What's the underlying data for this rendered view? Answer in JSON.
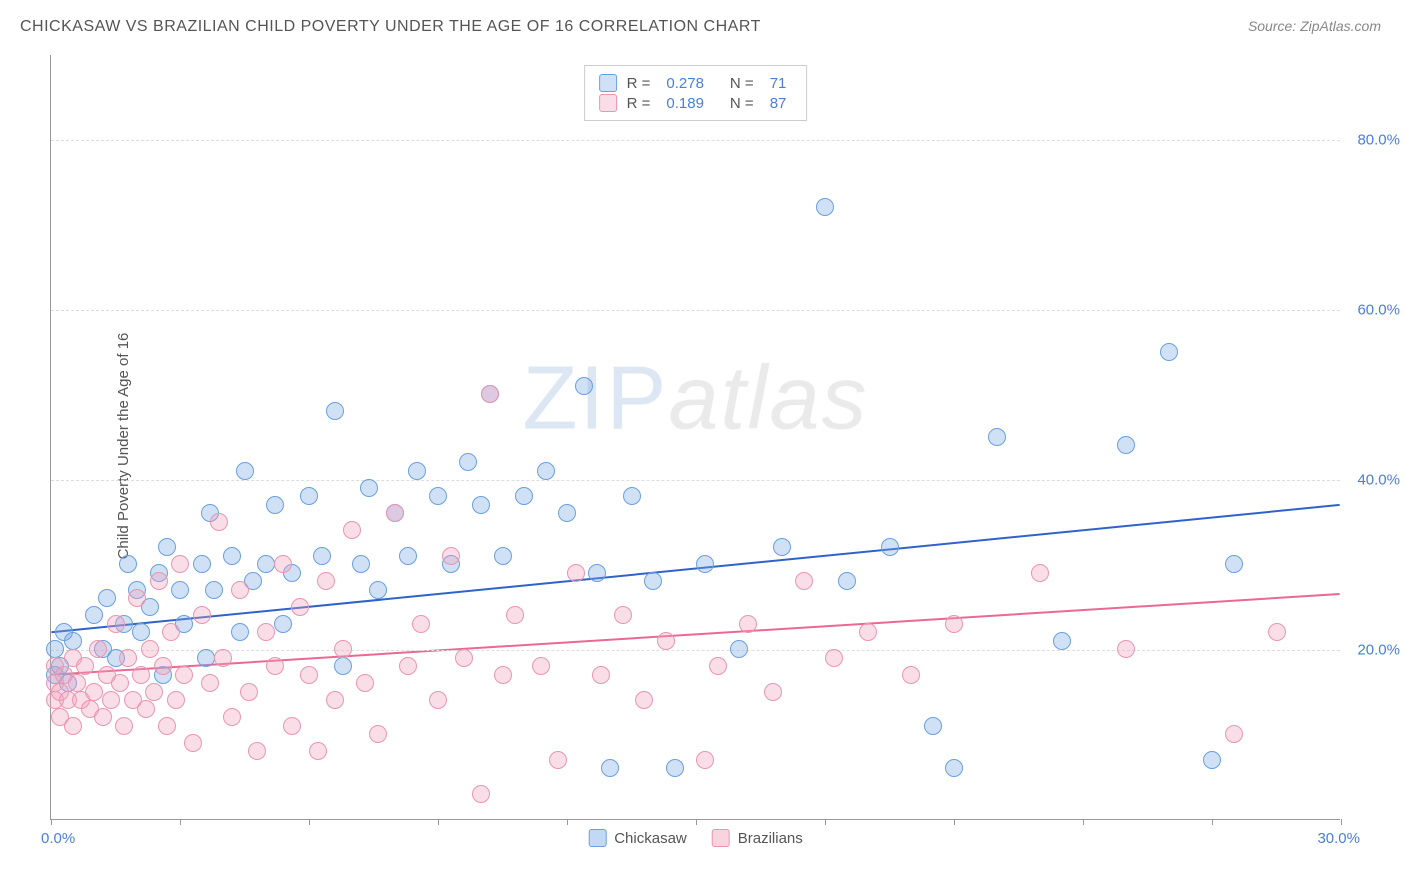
{
  "title": "CHICKASAW VS BRAZILIAN CHILD POVERTY UNDER THE AGE OF 16 CORRELATION CHART",
  "source_prefix": "Source: ",
  "source_name": "ZipAtlas.com",
  "ylabel": "Child Poverty Under the Age of 16",
  "watermark_zip": "ZIP",
  "watermark_atlas": "atlas",
  "chart": {
    "type": "scatter",
    "xlim": [
      0,
      30
    ],
    "ylim": [
      0,
      90
    ],
    "xticks": [
      0,
      3,
      6,
      9,
      12,
      15,
      18,
      21,
      24,
      27,
      30
    ],
    "xlim_labels": {
      "min": "0.0%",
      "max": "30.0%"
    },
    "ygrid": [
      {
        "v": 20,
        "label": "20.0%"
      },
      {
        "v": 40,
        "label": "40.0%"
      },
      {
        "v": 60,
        "label": "60.0%"
      },
      {
        "v": 80,
        "label": "80.0%"
      }
    ],
    "background_color": "#ffffff",
    "grid_color": "#dddddd",
    "axis_color": "#999999",
    "tick_label_color": "#4a7fd8",
    "marker_radius": 9,
    "marker_border_width": 1.5,
    "series": [
      {
        "name": "Chickasaw",
        "fill": "rgba(120,170,230,0.35)",
        "stroke": "#6aa0de",
        "trend": {
          "x1": 0,
          "y1": 22,
          "x2": 30,
          "y2": 37,
          "color": "#2f63c9",
          "width": 2
        },
        "R_label": "R =",
        "R": "0.278",
        "N_label": "N =",
        "N": "71",
        "points": [
          [
            0.1,
            17
          ],
          [
            0.1,
            20
          ],
          [
            0.2,
            18
          ],
          [
            0.3,
            22
          ],
          [
            0.4,
            16
          ],
          [
            0.5,
            21
          ],
          [
            1.0,
            24
          ],
          [
            1.2,
            20
          ],
          [
            1.3,
            26
          ],
          [
            1.5,
            19
          ],
          [
            1.7,
            23
          ],
          [
            1.8,
            30
          ],
          [
            2.0,
            27
          ],
          [
            2.1,
            22
          ],
          [
            2.3,
            25
          ],
          [
            2.5,
            29
          ],
          [
            2.6,
            17
          ],
          [
            2.7,
            32
          ],
          [
            3.0,
            27
          ],
          [
            3.1,
            23
          ],
          [
            3.5,
            30
          ],
          [
            3.6,
            19
          ],
          [
            3.7,
            36
          ],
          [
            3.8,
            27
          ],
          [
            4.2,
            31
          ],
          [
            4.4,
            22
          ],
          [
            4.5,
            41
          ],
          [
            4.7,
            28
          ],
          [
            5.0,
            30
          ],
          [
            5.2,
            37
          ],
          [
            5.4,
            23
          ],
          [
            5.6,
            29
          ],
          [
            6.0,
            38
          ],
          [
            6.3,
            31
          ],
          [
            6.6,
            48
          ],
          [
            6.8,
            18
          ],
          [
            7.2,
            30
          ],
          [
            7.4,
            39
          ],
          [
            7.6,
            27
          ],
          [
            8.0,
            36
          ],
          [
            8.3,
            31
          ],
          [
            8.5,
            41
          ],
          [
            9.0,
            38
          ],
          [
            9.3,
            30
          ],
          [
            9.7,
            42
          ],
          [
            10.0,
            37
          ],
          [
            10.2,
            50
          ],
          [
            10.5,
            31
          ],
          [
            11.0,
            38
          ],
          [
            11.5,
            41
          ],
          [
            12.0,
            36
          ],
          [
            12.4,
            51
          ],
          [
            12.7,
            29
          ],
          [
            13.0,
            6
          ],
          [
            13.5,
            38
          ],
          [
            14.0,
            28
          ],
          [
            14.5,
            6
          ],
          [
            15.2,
            30
          ],
          [
            16.0,
            20
          ],
          [
            17.0,
            32
          ],
          [
            18.0,
            72
          ],
          [
            18.5,
            28
          ],
          [
            19.5,
            32
          ],
          [
            20.5,
            11
          ],
          [
            21.0,
            6
          ],
          [
            22.0,
            45
          ],
          [
            23.5,
            21
          ],
          [
            25.0,
            44
          ],
          [
            26.0,
            55
          ],
          [
            27.0,
            7
          ],
          [
            27.5,
            30
          ]
        ]
      },
      {
        "name": "Brazilians",
        "fill": "rgba(240,160,185,0.35)",
        "stroke": "#e996b0",
        "trend": {
          "x1": 0,
          "y1": 17,
          "x2": 30,
          "y2": 26.5,
          "color": "#e86a94",
          "width": 2
        },
        "R_label": "R =",
        "R": "0.189",
        "N_label": "N =",
        "N": "87",
        "points": [
          [
            0.1,
            14
          ],
          [
            0.1,
            16
          ],
          [
            0.1,
            18
          ],
          [
            0.2,
            15
          ],
          [
            0.2,
            12
          ],
          [
            0.3,
            17
          ],
          [
            0.4,
            14
          ],
          [
            0.5,
            19
          ],
          [
            0.5,
            11
          ],
          [
            0.6,
            16
          ],
          [
            0.7,
            14
          ],
          [
            0.8,
            18
          ],
          [
            0.9,
            13
          ],
          [
            1.0,
            15
          ],
          [
            1.1,
            20
          ],
          [
            1.2,
            12
          ],
          [
            1.3,
            17
          ],
          [
            1.4,
            14
          ],
          [
            1.5,
            23
          ],
          [
            1.6,
            16
          ],
          [
            1.7,
            11
          ],
          [
            1.8,
            19
          ],
          [
            1.9,
            14
          ],
          [
            2.0,
            26
          ],
          [
            2.1,
            17
          ],
          [
            2.2,
            13
          ],
          [
            2.3,
            20
          ],
          [
            2.4,
            15
          ],
          [
            2.5,
            28
          ],
          [
            2.6,
            18
          ],
          [
            2.7,
            11
          ],
          [
            2.8,
            22
          ],
          [
            2.9,
            14
          ],
          [
            3.0,
            30
          ],
          [
            3.1,
            17
          ],
          [
            3.3,
            9
          ],
          [
            3.5,
            24
          ],
          [
            3.7,
            16
          ],
          [
            3.9,
            35
          ],
          [
            4.0,
            19
          ],
          [
            4.2,
            12
          ],
          [
            4.4,
            27
          ],
          [
            4.6,
            15
          ],
          [
            4.8,
            8
          ],
          [
            5.0,
            22
          ],
          [
            5.2,
            18
          ],
          [
            5.4,
            30
          ],
          [
            5.6,
            11
          ],
          [
            5.8,
            25
          ],
          [
            6.0,
            17
          ],
          [
            6.2,
            8
          ],
          [
            6.4,
            28
          ],
          [
            6.6,
            14
          ],
          [
            6.8,
            20
          ],
          [
            7.0,
            34
          ],
          [
            7.3,
            16
          ],
          [
            7.6,
            10
          ],
          [
            8.0,
            36
          ],
          [
            8.3,
            18
          ],
          [
            8.6,
            23
          ],
          [
            9.0,
            14
          ],
          [
            9.3,
            31
          ],
          [
            9.6,
            19
          ],
          [
            10.0,
            3
          ],
          [
            10.2,
            50
          ],
          [
            10.5,
            17
          ],
          [
            10.8,
            24
          ],
          [
            11.4,
            18
          ],
          [
            11.8,
            7
          ],
          [
            12.2,
            29
          ],
          [
            12.8,
            17
          ],
          [
            13.3,
            24
          ],
          [
            13.8,
            14
          ],
          [
            14.3,
            21
          ],
          [
            15.2,
            7
          ],
          [
            15.5,
            18
          ],
          [
            16.2,
            23
          ],
          [
            16.8,
            15
          ],
          [
            17.5,
            28
          ],
          [
            18.2,
            19
          ],
          [
            19.0,
            22
          ],
          [
            20.0,
            17
          ],
          [
            21.0,
            23
          ],
          [
            23.0,
            29
          ],
          [
            25.0,
            20
          ],
          [
            27.5,
            10
          ],
          [
            28.5,
            22
          ]
        ]
      }
    ],
    "bottom_legend": [
      {
        "label": "Chickasaw",
        "fill": "rgba(120,170,230,0.45)",
        "stroke": "#6aa0de"
      },
      {
        "label": "Brazilians",
        "fill": "rgba(240,160,185,0.45)",
        "stroke": "#e996b0"
      }
    ]
  }
}
